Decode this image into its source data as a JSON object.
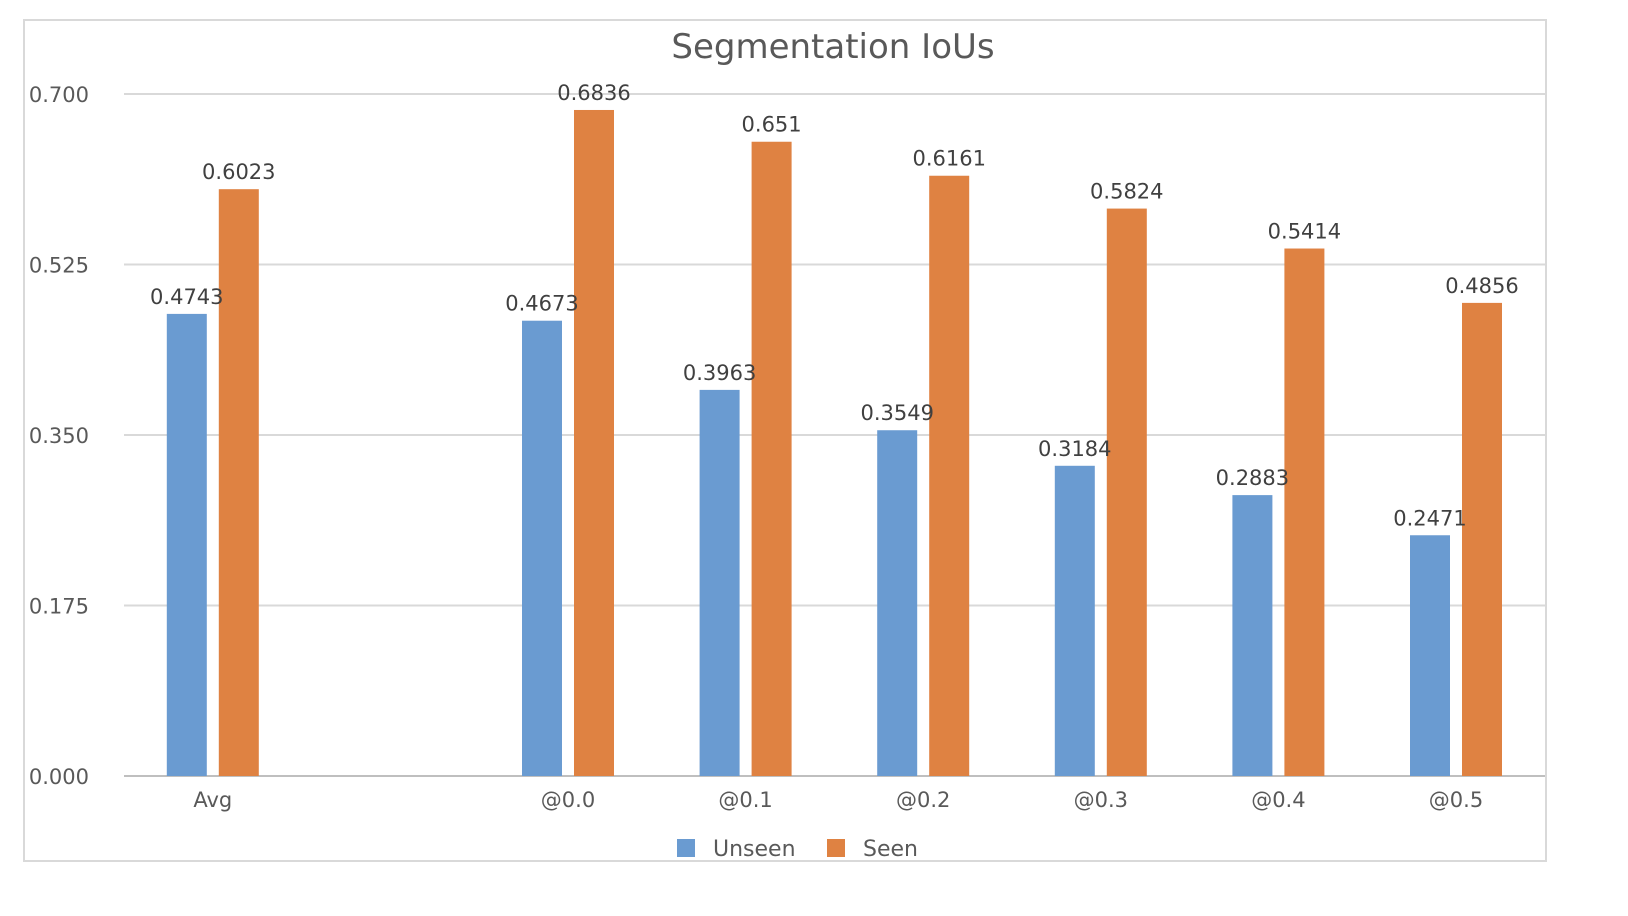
{
  "chart_data": {
    "type": "bar",
    "title": "Segmentation IoUs",
    "xlabel": "",
    "ylabel": "",
    "ylim": [
      0,
      0.7
    ],
    "yticks": [
      "0.000",
      "0.175",
      "0.350",
      "0.525",
      "0.700"
    ],
    "grid": true,
    "legend_position": "bottom",
    "categories": [
      "Avg",
      "",
      "@0.0",
      "@0.1",
      "@0.2",
      "@0.3",
      "@0.4",
      "@0.5"
    ],
    "series": [
      {
        "name": "Unseen",
        "color": "#6a9bd1",
        "values": [
          0.4743,
          null,
          0.4673,
          0.3963,
          0.3549,
          0.3184,
          0.2883,
          0.2471
        ],
        "labels": [
          "0.4743",
          "",
          "0.4673",
          "0.3963",
          "0.3549",
          "0.3184",
          "0.2883",
          "0.2471"
        ]
      },
      {
        "name": "Seen",
        "color": "#df8242",
        "values": [
          0.6023,
          null,
          0.6836,
          0.651,
          0.6161,
          0.5824,
          0.5414,
          0.4856
        ],
        "labels": [
          "0.6023",
          "",
          "0.6836",
          "0.651",
          "0.6161",
          "0.5824",
          "0.5414",
          "0.4856"
        ]
      }
    ]
  }
}
